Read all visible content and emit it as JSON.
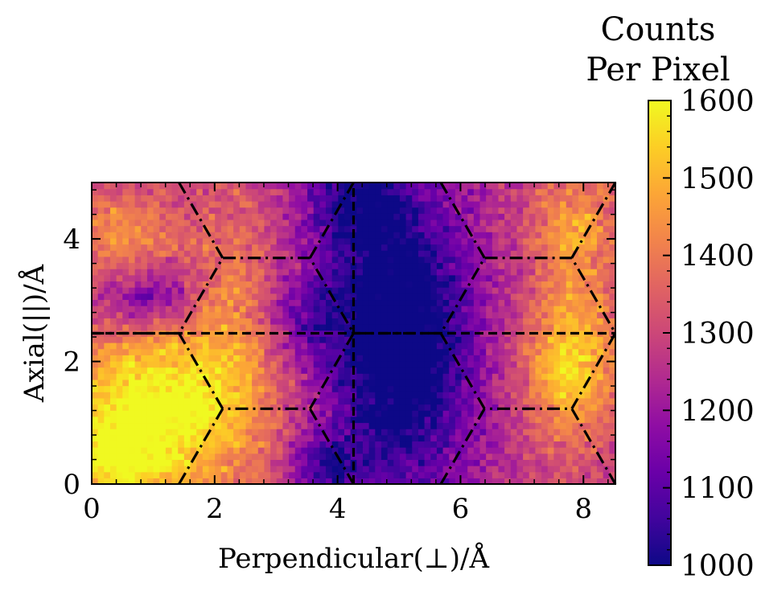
{
  "chart_data": {
    "type": "heatmap",
    "colormap": "plasma",
    "xlabel": "Perpendicular(⊥)/Å",
    "ylabel": "Axial(||)/Å",
    "xlim": [
      0,
      8.52
    ],
    "ylim": [
      0,
      4.92
    ],
    "xticks": [
      "0",
      "2",
      "4",
      "6",
      "8"
    ],
    "yticks": [
      "0",
      "2",
      "4"
    ],
    "grid": false,
    "colorbar": {
      "title_line1": "Counts",
      "title_line2": "Per Pixel",
      "min": 1000,
      "max": 1600,
      "ticks": [
        "1000",
        "1100",
        "1200",
        "1300",
        "1400",
        "1500",
        "1600"
      ]
    },
    "grid_size": {
      "nx": 85,
      "ny": 49
    },
    "hot_spots": [
      {
        "x": 1.1,
        "y": 1.2,
        "sx": 1.2,
        "sy": 1.0,
        "amp": 350
      },
      {
        "x": 0.3,
        "y": 0.3,
        "sx": 0.6,
        "sy": 0.5,
        "amp": 150
      },
      {
        "x": 7.8,
        "y": 2.0,
        "sx": 0.55,
        "sy": 0.9,
        "amp": 280
      },
      {
        "x": 7.9,
        "y": 4.2,
        "sx": 0.5,
        "sy": 0.6,
        "amp": 180
      },
      {
        "x": 0.5,
        "y": 4.0,
        "sx": 0.6,
        "sy": 0.6,
        "amp": 170
      },
      {
        "x": 2.3,
        "y": 3.2,
        "sx": 0.5,
        "sy": 1.2,
        "amp": 120
      }
    ],
    "cold_spots": [
      {
        "x": 5.0,
        "y": 2.3,
        "sx": 0.9,
        "sy": 1.8,
        "amp": 380
      },
      {
        "x": 4.3,
        "y": 4.6,
        "sx": 0.6,
        "sy": 0.6,
        "amp": 200
      },
      {
        "x": 3.8,
        "y": 0.3,
        "sx": 0.4,
        "sy": 0.4,
        "amp": 200
      },
      {
        "x": 0.9,
        "y": 3.1,
        "sx": 0.6,
        "sy": 0.4,
        "amp": 200
      },
      {
        "x": 3.5,
        "y": 2.8,
        "sx": 0.5,
        "sy": 0.5,
        "amp": 120
      }
    ],
    "base_level": 1280,
    "noise": 70,
    "hex_lines": [
      [
        [
          1.42,
          0
        ],
        [
          2.13,
          1.23
        ],
        [
          3.55,
          1.23
        ],
        [
          4.26,
          0
        ]
      ],
      [
        [
          2.13,
          1.23
        ],
        [
          1.42,
          2.46
        ],
        [
          2.13,
          3.69
        ],
        [
          3.55,
          3.69
        ],
        [
          4.26,
          2.46
        ],
        [
          3.55,
          1.23
        ]
      ],
      [
        [
          1.42,
          2.46
        ],
        [
          0,
          2.46
        ]
      ],
      [
        [
          2.13,
          3.69
        ],
        [
          1.42,
          4.92
        ]
      ],
      [
        [
          3.55,
          3.69
        ],
        [
          4.26,
          4.92
        ]
      ],
      [
        [
          5.68,
          0
        ],
        [
          6.39,
          1.23
        ],
        [
          7.81,
          1.23
        ],
        [
          8.52,
          0
        ]
      ],
      [
        [
          6.39,
          1.23
        ],
        [
          5.68,
          2.46
        ],
        [
          6.39,
          3.69
        ],
        [
          7.81,
          3.69
        ],
        [
          8.52,
          2.46
        ],
        [
          7.81,
          1.23
        ]
      ],
      [
        [
          5.68,
          2.46
        ],
        [
          4.26,
          2.46
        ]
      ],
      [
        [
          6.39,
          3.69
        ],
        [
          5.68,
          4.92
        ]
      ],
      [
        [
          7.81,
          3.69
        ],
        [
          8.52,
          4.92
        ]
      ]
    ],
    "dashed_lines": [
      [
        [
          0,
          2.46
        ],
        [
          8.52,
          2.46
        ]
      ],
      [
        [
          4.26,
          0
        ],
        [
          4.26,
          4.92
        ]
      ]
    ]
  }
}
